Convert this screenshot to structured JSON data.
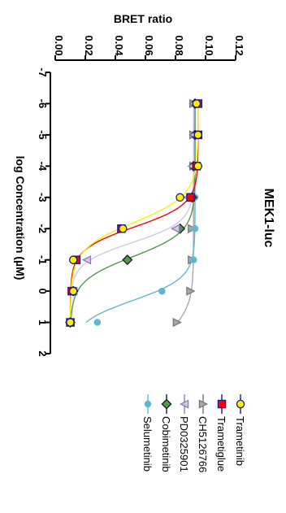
{
  "chart_data": {
    "type": "scatter",
    "title": "MEK1-luc",
    "xlabel": "log Concentration (µM)",
    "ylabel": "BRET ratio",
    "xlim": [
      -7,
      2
    ],
    "ylim": [
      0.0,
      0.12
    ],
    "xticks": [
      "-7",
      "-6",
      "-5",
      "-4",
      "-3",
      "-2",
      "-1",
      "0",
      "1",
      "2"
    ],
    "yticks": [
      "0.00",
      "0.02",
      "0.04",
      "0.06",
      "0.08",
      "0.10",
      "0.12"
    ],
    "orientation": "rotated-90-clockwise",
    "legend_position": "right",
    "series": [
      {
        "name": "Trametinib",
        "marker": "circle",
        "color": "#ffee00",
        "line": "#1a1a8c",
        "curve": "#ffee00",
        "x": [
          -6,
          -5,
          -4,
          -3,
          -2,
          -1,
          0,
          1
        ],
        "y": [
          0.094,
          0.095,
          0.095,
          0.083,
          0.045,
          0.012,
          0.012,
          0.01
        ],
        "fit": {
          "top": 0.095,
          "bottom": 0.01,
          "logIC50": -2.2,
          "hill": 1.0
        }
      },
      {
        "name": "Trametiglue",
        "marker": "square",
        "color": "#ff0000",
        "line": "#1a1a8c",
        "curve": "#ff0000",
        "x": [
          -6,
          -5,
          -4,
          -3,
          -2,
          -1,
          0,
          1
        ],
        "y": [
          0.095,
          0.095,
          0.094,
          0.09,
          0.044,
          0.014,
          0.011,
          0.01
        ],
        "fit": {
          "top": 0.095,
          "bottom": 0.01,
          "logIC50": -2.05,
          "hill": 1.2
        }
      },
      {
        "name": "CH5126766",
        "marker": "triangle-right",
        "color": "#a8a8b0",
        "line": "#777777",
        "curve": "#a8a8b0",
        "x": [
          -6,
          -5,
          -4,
          -3,
          -2,
          -1,
          0,
          1
        ],
        "y": [
          0.092,
          0.092,
          0.092,
          0.092,
          0.091,
          0.091,
          0.09,
          0.081
        ],
        "fit": {
          "top": 0.092,
          "bottom": 0.06,
          "logIC50": 1.3,
          "hill": 1.0
        }
      },
      {
        "name": "PD0325901",
        "marker": "triangle-left",
        "color": "#d2c6ea",
        "line": "#8a7fb0",
        "curve": "#d2c6ea",
        "x": [
          -6,
          -5,
          -4,
          -3,
          -2,
          -1,
          0,
          1
        ],
        "y": [
          0.092,
          0.092,
          0.091,
          0.088,
          0.08,
          0.021,
          0.012,
          0.01
        ],
        "fit": {
          "top": 0.092,
          "bottom": 0.01,
          "logIC50": -1.55,
          "hill": 1.3
        }
      },
      {
        "name": "Cobimetinib",
        "marker": "diamond",
        "color": "#4f9a4b",
        "line": "#1a1a1a",
        "curve": "#4f9a4b",
        "x": [
          -6,
          -5,
          -4,
          -3,
          -2,
          -1,
          0,
          1
        ],
        "y": [
          0.093,
          0.093,
          0.092,
          0.091,
          0.083,
          0.048,
          0.012,
          0.01
        ],
        "fit": {
          "top": 0.093,
          "bottom": 0.01,
          "logIC50": -1.1,
          "hill": 1.1
        }
      },
      {
        "name": "Selumetinib",
        "marker": "circle-small",
        "color": "#5fb8cf",
        "line": "#5fb8cf",
        "curve": "#5fb8cf",
        "x": [
          -6,
          -5,
          -4,
          -3,
          -2,
          -1,
          0,
          1
        ],
        "y": [
          0.093,
          0.093,
          0.093,
          0.093,
          0.093,
          0.092,
          0.071,
          0.028
        ],
        "fit": {
          "top": 0.093,
          "bottom": 0.01,
          "logIC50": 0.3,
          "hill": 1.2
        }
      }
    ]
  }
}
